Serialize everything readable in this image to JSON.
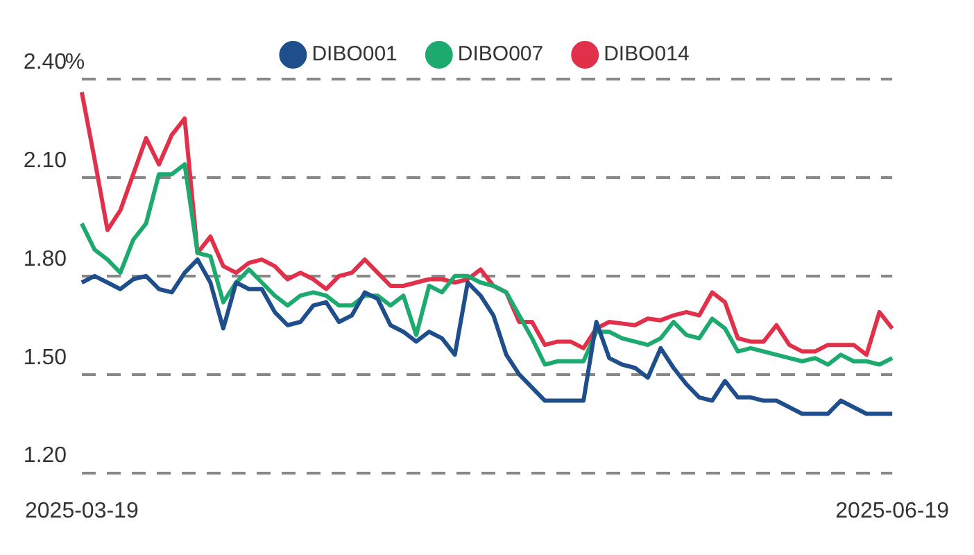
{
  "chart_data": {
    "type": "line",
    "ylabel": "%",
    "categories": [
      "2025-03-19",
      null,
      null,
      null,
      null,
      null,
      null,
      null,
      null,
      null,
      null,
      null,
      null,
      null,
      null,
      null,
      null,
      null,
      null,
      null,
      null,
      null,
      null,
      null,
      null,
      null,
      null,
      null,
      null,
      null,
      null,
      null,
      null,
      null,
      null,
      null,
      null,
      null,
      null,
      null,
      null,
      null,
      null,
      null,
      null,
      null,
      null,
      null,
      null,
      null,
      null,
      null,
      null,
      null,
      null,
      null,
      null,
      null,
      null,
      null,
      null,
      null,
      null,
      "2025-06-19"
    ],
    "series": [
      {
        "name": "DIBO001",
        "color": "#1f4e8c",
        "values": [
          1.78,
          1.8,
          1.78,
          1.76,
          1.79,
          1.8,
          1.76,
          1.75,
          1.81,
          1.85,
          1.78,
          1.64,
          1.78,
          1.76,
          1.76,
          1.69,
          1.65,
          1.66,
          1.71,
          1.72,
          1.66,
          1.68,
          1.75,
          1.73,
          1.65,
          1.63,
          1.6,
          1.63,
          1.61,
          1.56,
          1.78,
          1.74,
          1.68,
          1.56,
          1.5,
          1.46,
          1.42,
          1.42,
          1.42,
          1.42,
          1.66,
          1.55,
          1.53,
          1.52,
          1.49,
          1.58,
          1.52,
          1.47,
          1.43,
          1.42,
          1.48,
          1.43,
          1.43,
          1.42,
          1.42,
          1.4,
          1.38,
          1.38,
          1.38,
          1.42,
          1.4,
          1.38,
          1.38,
          1.38
        ]
      },
      {
        "name": "DIBO007",
        "color": "#1daa6e",
        "values": [
          1.96,
          1.88,
          1.85,
          1.81,
          1.91,
          1.96,
          2.11,
          2.11,
          2.14,
          1.87,
          1.86,
          1.72,
          1.78,
          1.82,
          1.78,
          1.74,
          1.71,
          1.74,
          1.75,
          1.74,
          1.71,
          1.71,
          1.74,
          1.74,
          1.71,
          1.74,
          1.62,
          1.77,
          1.75,
          1.8,
          1.8,
          1.78,
          1.77,
          1.75,
          1.68,
          1.61,
          1.53,
          1.54,
          1.54,
          1.54,
          1.63,
          1.63,
          1.61,
          1.6,
          1.59,
          1.61,
          1.66,
          1.62,
          1.61,
          1.67,
          1.64,
          1.57,
          1.58,
          1.57,
          1.56,
          1.55,
          1.54,
          1.55,
          1.53,
          1.56,
          1.54,
          1.54,
          1.53,
          1.55
        ]
      },
      {
        "name": "DIBO014",
        "color": "#e0304a",
        "values": [
          2.36,
          2.155,
          1.94,
          2.0,
          2.11,
          2.22,
          2.14,
          2.23,
          2.28,
          1.87,
          1.92,
          1.83,
          1.81,
          1.84,
          1.85,
          1.83,
          1.79,
          1.81,
          1.79,
          1.76,
          1.8,
          1.81,
          1.85,
          1.81,
          1.77,
          1.77,
          1.78,
          1.79,
          1.79,
          1.78,
          1.79,
          1.82,
          1.77,
          1.75,
          1.66,
          1.66,
          1.59,
          1.6,
          1.6,
          1.58,
          1.64,
          1.66,
          1.655,
          1.65,
          1.67,
          1.665,
          1.68,
          1.69,
          1.68,
          1.75,
          1.72,
          1.61,
          1.6,
          1.6,
          1.65,
          1.59,
          1.57,
          1.57,
          1.59,
          1.59,
          1.59,
          1.56,
          1.69,
          1.64
        ]
      }
    ],
    "ylim": [
      1.2,
      2.4
    ],
    "yticks": [
      {
        "value": 1.2,
        "label": "1.20"
      },
      {
        "value": 1.5,
        "label": "1.50"
      },
      {
        "value": 1.8,
        "label": "1.80"
      },
      {
        "value": 2.1,
        "label": "2.10"
      },
      {
        "value": 2.4,
        "label": "2.40"
      }
    ],
    "grid": "y",
    "legend": "top",
    "marker": "none",
    "line_style": "solid"
  }
}
